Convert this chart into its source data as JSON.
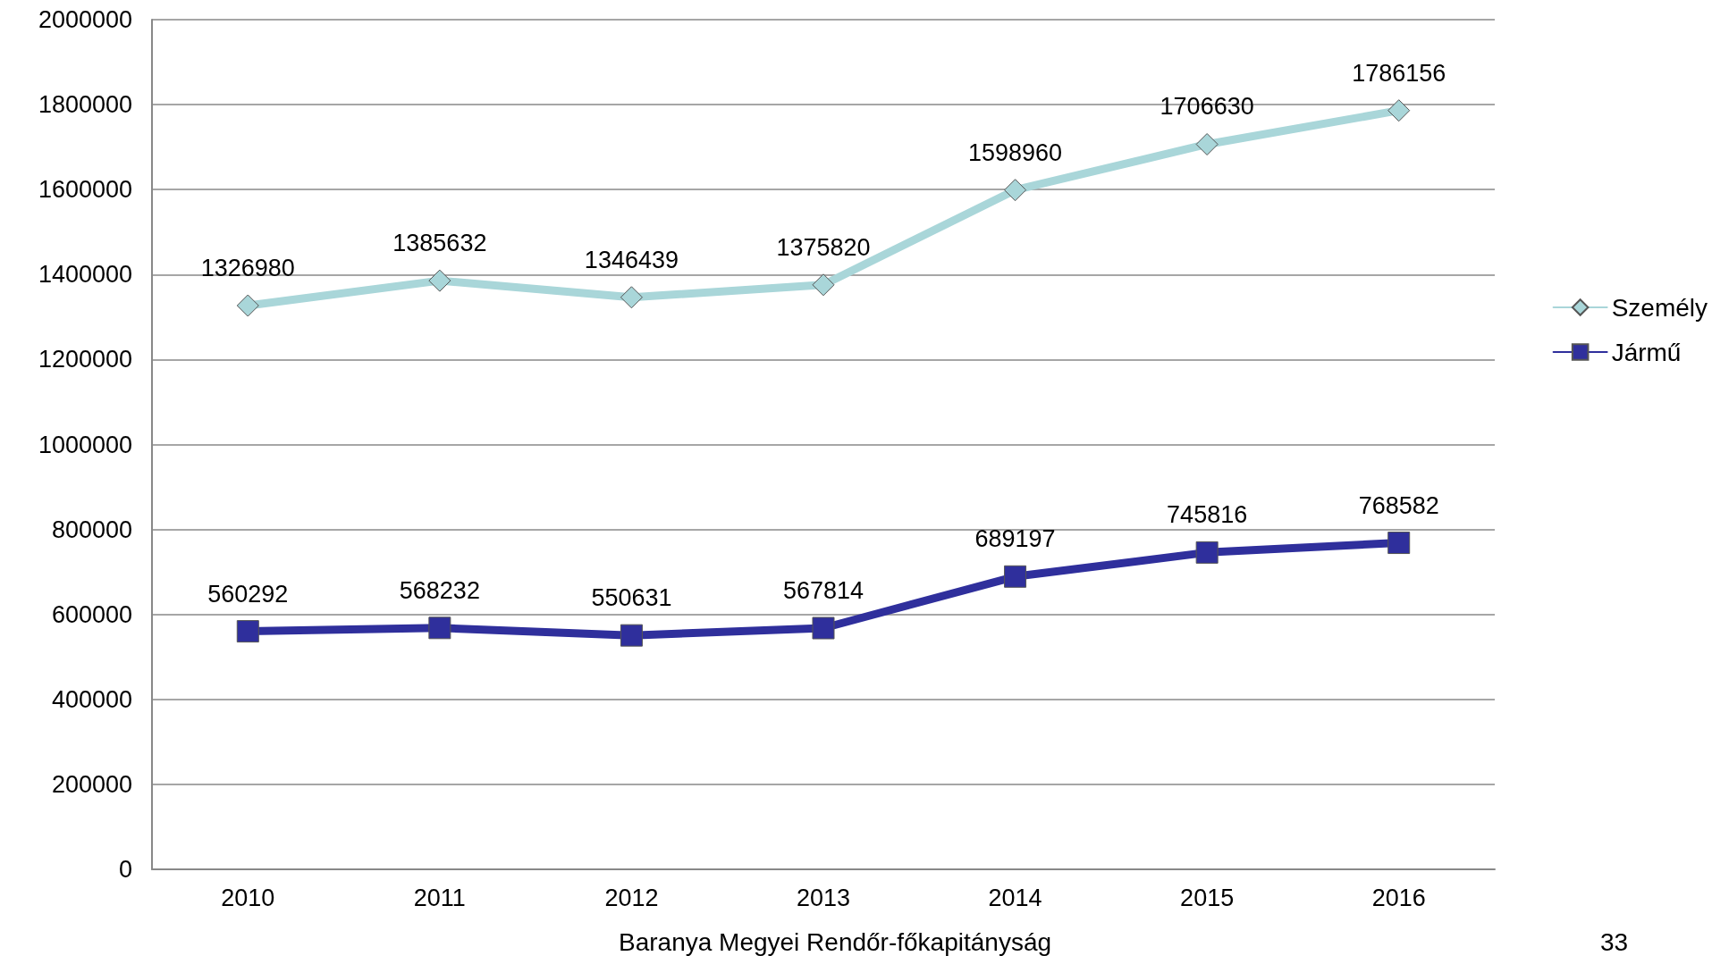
{
  "chart_data": {
    "type": "line",
    "categories": [
      "2010",
      "2011",
      "2012",
      "2013",
      "2014",
      "2015",
      "2016"
    ],
    "series": [
      {
        "name": "Személy",
        "color": "#a9d6d9",
        "marker": "diamond",
        "values": [
          1326980,
          1385632,
          1346439,
          1375820,
          1598960,
          1706630,
          1786156
        ]
      },
      {
        "name": "Jármű",
        "color": "#2f2f9c",
        "marker": "square",
        "values": [
          560292,
          568232,
          550631,
          567814,
          689197,
          745816,
          768582
        ]
      }
    ],
    "ylim": [
      0,
      2000000
    ],
    "yticks": [
      0,
      200000,
      400000,
      600000,
      800000,
      1000000,
      1200000,
      1400000,
      1600000,
      1800000,
      2000000
    ],
    "grid": "y",
    "legend": "right",
    "data_labels": true,
    "annotations": [
      "Baranya Megyei Rendőr-főkapitányság",
      "33"
    ]
  }
}
